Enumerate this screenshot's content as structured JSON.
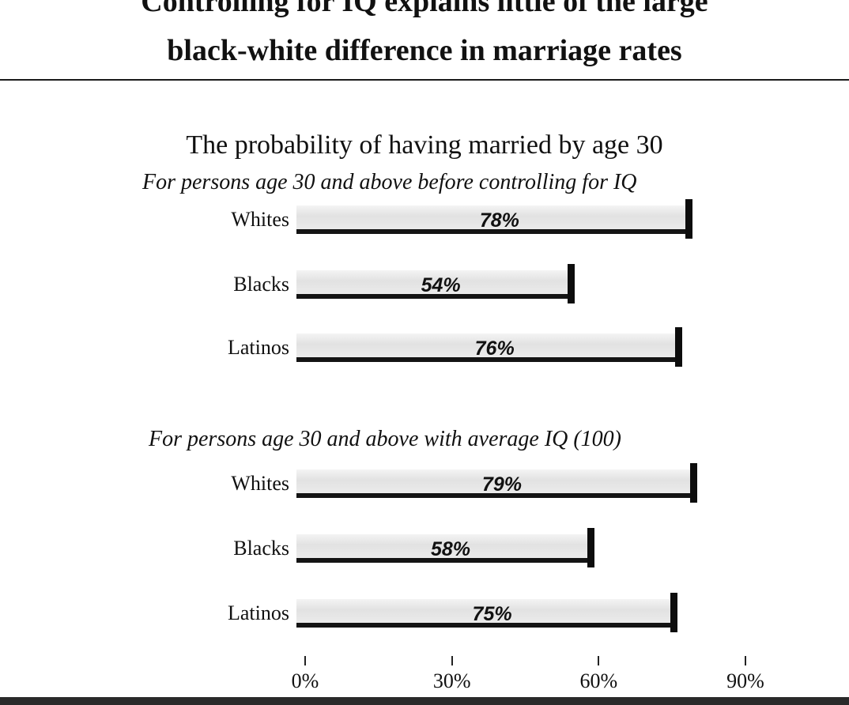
{
  "headline": {
    "line1": "Controlling for IQ explains little of the large",
    "line2": "black-white difference in marriage rates"
  },
  "chart_data": {
    "type": "bar",
    "orientation": "horizontal",
    "title": "The probability of having married by age 30",
    "xlim": [
      0,
      90
    ],
    "x_ticks": [
      "0%",
      "30%",
      "60%",
      "90%"
    ],
    "grid": false,
    "groups": [
      {
        "label": "For persons age 30 and above before controlling for IQ",
        "categories": [
          "Whites",
          "Blacks",
          "Latinos"
        ],
        "values": [
          78,
          54,
          76
        ],
        "value_labels": [
          "78%",
          "54%",
          "76%"
        ]
      },
      {
        "label": "For persons age 30 and above with  average IQ (100)",
        "categories": [
          "Whites",
          "Blacks",
          "Latinos"
        ],
        "values": [
          79,
          58,
          75
        ],
        "value_labels": [
          "79%",
          "58%",
          "75%"
        ]
      }
    ]
  }
}
